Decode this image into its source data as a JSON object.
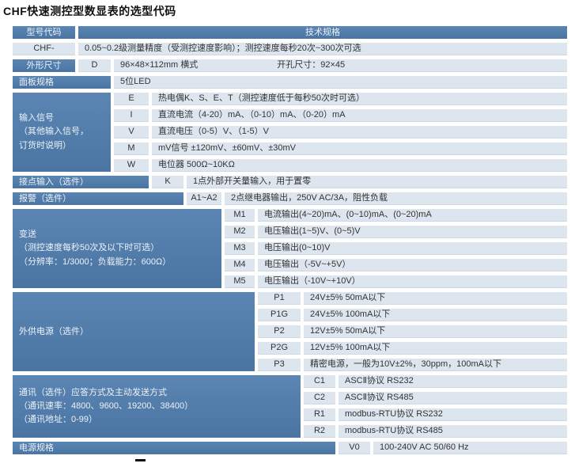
{
  "title": "CHF快速测控型数显表的选型代码",
  "header": {
    "model_code": "型号代码",
    "tech_spec": "技术规格"
  },
  "base": {
    "code": "CHF-",
    "desc": "0.05~0.2级测量精度（受测控速度影响）；测控速度每秒20次~300次可选"
  },
  "dimension": {
    "label": "外形尺寸",
    "code": "D",
    "desc_main": "96×48×112mm 横式",
    "desc_hole": "开孔尺寸：92×45"
  },
  "panel": {
    "label": "面板规格",
    "desc": "5位LED"
  },
  "input_signal": {
    "label_line1": "输入信号",
    "label_line2": "（其他输入信号，",
    "label_line3": "订货时说明）",
    "options": [
      {
        "code": "E",
        "desc": "热电偶K、S、E、T（测控速度低于每秒50次时可选）"
      },
      {
        "code": "I",
        "desc": "直流电流（4-20）mA、（0-10）mA、（0-20）mA"
      },
      {
        "code": "V",
        "desc": "直流电压（0-5）V、（1-5）V"
      },
      {
        "code": "M",
        "desc": "mV信号 ±120mV、±60mV、±30mV"
      },
      {
        "code": "W",
        "desc": "电位器 500Ω~10KΩ"
      }
    ]
  },
  "contact_input": {
    "label": "接点输入（选件）",
    "code": "K",
    "desc": "1点外部开关量输入，用于置零"
  },
  "alarm": {
    "label": "报警（选件）",
    "code": "A1~A2",
    "desc": "2点继电器输出，250V AC/3A，阻性负载"
  },
  "transmit": {
    "label_line1": "变送",
    "label_line2": "（测控速度每秒50次及以下时可选）",
    "label_line3": "（分辨率：1/3000；负载能力：600Ω）",
    "options": [
      {
        "code": "M1",
        "desc": "电流输出(4~20)mA、(0~10)mA、(0~20)mA"
      },
      {
        "code": "M2",
        "desc": "电压输出(1~5)V、(0~5)V"
      },
      {
        "code": "M3",
        "desc": "电压输出(0~10)V"
      },
      {
        "code": "M4",
        "desc": "电压输出（-5V~+5V）"
      },
      {
        "code": "M5",
        "desc": "电压输出（-10V~+10V）"
      }
    ]
  },
  "ext_power": {
    "label": "外供电源（选件）",
    "options": [
      {
        "code": "P1",
        "desc": "24V±5% 50mA以下"
      },
      {
        "code": "P1G",
        "desc": "24V±5% 100mA以下"
      },
      {
        "code": "P2",
        "desc": "12V±5% 50mA以下"
      },
      {
        "code": "P2G",
        "desc": "12V±5% 100mA以下"
      },
      {
        "code": "P3",
        "desc": "精密电源，一般为10V±2%，30ppm，100mA以下"
      }
    ]
  },
  "comm": {
    "label_line1": "通讯（选件）应答方式及主动发送方式",
    "label_line2": "（通讯速率：4800、9600、19200、38400）",
    "label_line3": "（通讯地址：0-99）",
    "options": [
      {
        "code": "C1",
        "desc": "ASCⅡ协议 RS232"
      },
      {
        "code": "C2",
        "desc": "ASCⅡ协议 RS485"
      },
      {
        "code": "R1",
        "desc": "modbus-RTU协议 RS232"
      },
      {
        "code": "R2",
        "desc": "modbus-RTU协议 RS485"
      }
    ]
  },
  "power": {
    "label": "电源规格",
    "code": "V0",
    "desc": "100-240V AC 50/60 Hz"
  },
  "colors": {
    "header_blue": "#4d78a7",
    "cell_light": "#dde6ef"
  }
}
